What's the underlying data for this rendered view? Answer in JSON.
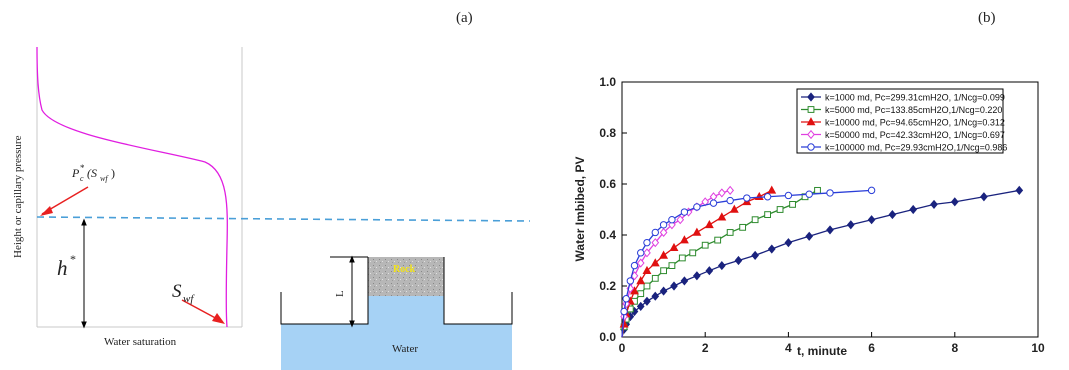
{
  "panel_a": {
    "label": "(a)",
    "y_axis_label": "Height or capillary pressure",
    "x_axis_label": "Water saturation",
    "pc_label_main": "P",
    "pc_label_sup": "c",
    "pc_label_star": "*",
    "pc_label_arg": "(S",
    "pc_label_sub": "wf",
    "pc_label_close": ")",
    "h_label_main": "h",
    "h_label_star": "*",
    "swf_label_main": "S",
    "swf_label_sub": "wf",
    "L_label": "L",
    "rock_label": "Rock",
    "water_label": "Water",
    "colors": {
      "curve": "#e01ee0",
      "dashed": "#4a9fd8",
      "arrow": "#e82020",
      "water": "#a6d2f5",
      "rock": "#b9b9b9",
      "rock_text": "#f2e31a"
    }
  },
  "panel_b": {
    "label": "(b)",
    "chart_data": {
      "type": "line",
      "xlabel": "t, minute",
      "ylabel": "Water Imbibed, PV",
      "xlim": [
        0,
        10
      ],
      "ylim": [
        0,
        1.0
      ],
      "xticks": [
        "0",
        "2",
        "4",
        "6",
        "8",
        "10"
      ],
      "yticks": [
        "0.0",
        "0.2",
        "0.4",
        "0.6",
        "0.8",
        "1.0"
      ],
      "grid": false,
      "legend_position": "top-right",
      "series": [
        {
          "name": "k=1000 md, Pc=299.31cmH2O, 1/Ncg=0.099",
          "color": "#1a237e",
          "marker": "diamond-filled",
          "x": [
            0,
            0.05,
            0.1,
            0.2,
            0.3,
            0.45,
            0.6,
            0.8,
            1.0,
            1.25,
            1.5,
            1.8,
            2.1,
            2.4,
            2.8,
            3.2,
            3.6,
            4.0,
            4.5,
            5.0,
            5.5,
            6.0,
            6.5,
            7.0,
            7.5,
            8.0,
            8.7,
            9.55
          ],
          "y": [
            0,
            0.03,
            0.05,
            0.08,
            0.1,
            0.12,
            0.14,
            0.16,
            0.18,
            0.2,
            0.22,
            0.24,
            0.26,
            0.28,
            0.3,
            0.32,
            0.345,
            0.37,
            0.395,
            0.42,
            0.44,
            0.46,
            0.48,
            0.5,
            0.52,
            0.53,
            0.55,
            0.575
          ]
        },
        {
          "name": "k=5000 md, Pc=133.85cmH2O,1/Ncg=0.220",
          "color": "#2e8b2e",
          "marker": "square-open",
          "x": [
            0,
            0.05,
            0.1,
            0.2,
            0.3,
            0.45,
            0.6,
            0.8,
            1.0,
            1.2,
            1.45,
            1.7,
            2.0,
            2.3,
            2.6,
            2.9,
            3.2,
            3.5,
            3.8,
            4.1,
            4.4,
            4.7
          ],
          "y": [
            0,
            0.04,
            0.07,
            0.11,
            0.14,
            0.17,
            0.2,
            0.23,
            0.26,
            0.28,
            0.31,
            0.33,
            0.36,
            0.38,
            0.41,
            0.43,
            0.46,
            0.48,
            0.5,
            0.52,
            0.55,
            0.575
          ]
        },
        {
          "name": "k=10000 md, Pc=94.65cmH2O, 1/Ncg=0.312",
          "color": "#e01010",
          "marker": "triangle-filled",
          "x": [
            0,
            0.05,
            0.1,
            0.2,
            0.3,
            0.45,
            0.6,
            0.8,
            1.0,
            1.25,
            1.5,
            1.8,
            2.1,
            2.4,
            2.7,
            3.0,
            3.3,
            3.6
          ],
          "y": [
            0,
            0.05,
            0.09,
            0.14,
            0.18,
            0.22,
            0.26,
            0.29,
            0.32,
            0.35,
            0.38,
            0.41,
            0.44,
            0.47,
            0.5,
            0.53,
            0.55,
            0.575
          ]
        },
        {
          "name": "k=50000 md, Pc=42.33cmH2O, 1/Ncg=0.697",
          "color": "#e040e0",
          "marker": "diamond-open",
          "x": [
            0,
            0.05,
            0.1,
            0.2,
            0.3,
            0.45,
            0.6,
            0.8,
            1.0,
            1.2,
            1.4,
            1.6,
            1.8,
            2.0,
            2.2,
            2.4,
            2.6
          ],
          "y": [
            0,
            0.08,
            0.13,
            0.19,
            0.24,
            0.29,
            0.33,
            0.37,
            0.41,
            0.44,
            0.46,
            0.49,
            0.51,
            0.53,
            0.55,
            0.565,
            0.575
          ]
        },
        {
          "name": "k=100000 md, Pc=29.93cmH2O,1/Ncg=0.986",
          "color": "#2a3ed8",
          "marker": "circle-open",
          "x": [
            0,
            0.05,
            0.1,
            0.2,
            0.3,
            0.45,
            0.6,
            0.8,
            1.0,
            1.2,
            1.5,
            1.8,
            2.2,
            2.6,
            3.0,
            3.5,
            4.0,
            4.5,
            5.0,
            6.0
          ],
          "y": [
            0,
            0.1,
            0.15,
            0.22,
            0.28,
            0.33,
            0.37,
            0.41,
            0.44,
            0.46,
            0.49,
            0.51,
            0.525,
            0.535,
            0.545,
            0.55,
            0.555,
            0.56,
            0.565,
            0.575
          ]
        }
      ]
    }
  }
}
